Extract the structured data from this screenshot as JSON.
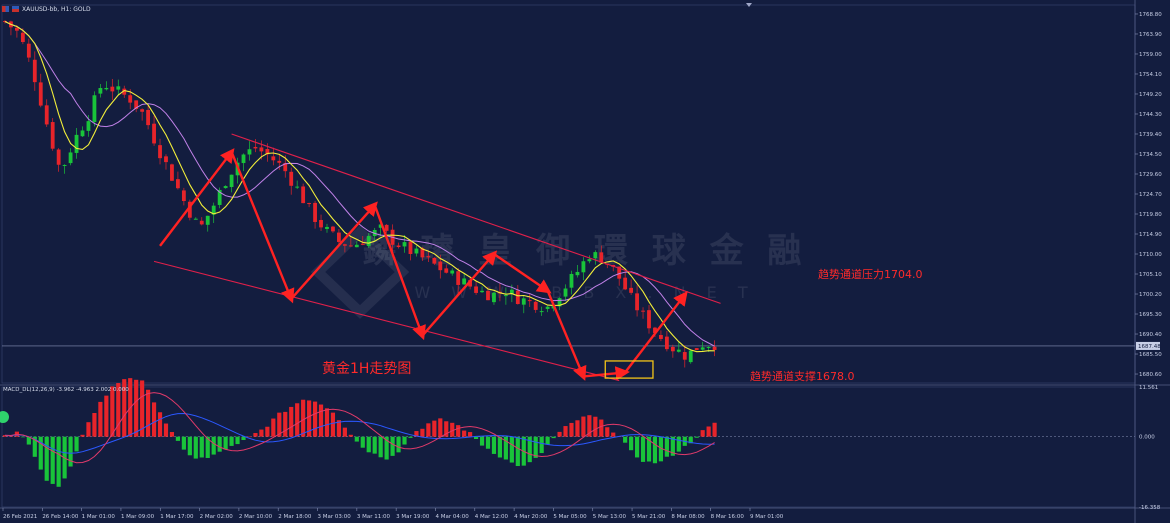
{
  "header": {
    "symbol_label": "XAUUSD-bb, H1:  GOLD"
  },
  "macd_header": {
    "label": "MACD_DL(12,26,9) -3.962 -4.963 2.002 0.000"
  },
  "watermark": {
    "text_cn": "鏻 璿 皇 御 環 球 金 融",
    "text_en": "W W W . B B X . N E T"
  },
  "annotations": {
    "title": "黄金1H走势图",
    "pressure": "趋势通道压力1704.0",
    "support": "趋势通道支撑1678.0"
  },
  "colors": {
    "bg": "#131d3f",
    "bull": "#19c43a",
    "bear": "#e8242a",
    "arrow": "#ff2222",
    "channel": "#e0204a",
    "ma_fast": "#f2ee3a",
    "ma_slow": "#c081e8",
    "box": "#f2c418"
  },
  "chart_data": [
    {
      "type": "candlestick",
      "title": "黄金1H走势图",
      "symbol": "XAUUSD-bb, H1: GOLD",
      "x_labels": [
        "26 Feb 2021",
        "26 Feb 14:00",
        "1 Mar 01:00",
        "1 Mar 09:00",
        "1 Mar 17:00",
        "2 Mar 02:00",
        "2 Mar 10:00",
        "2 Mar 18:00",
        "3 Mar 03:00",
        "3 Mar 11:00",
        "3 Mar 19:00",
        "4 Mar 04:00",
        "4 Mar 12:00",
        "4 Mar 20:00",
        "5 Mar 05:00",
        "5 Mar 13:00",
        "5 Mar 21:00",
        "8 Mar 08:00",
        "8 Mar 16:00",
        "9 Mar 01:00"
      ],
      "y_ticks": [
        "1768.80",
        "1763.90",
        "1759.00",
        "1754.10",
        "1749.20",
        "1744.30",
        "1739.40",
        "1734.50",
        "1729.60",
        "1724.70",
        "1719.80",
        "1714.90",
        "1710.00",
        "1705.10",
        "1700.20",
        "1695.30",
        "1690.40",
        "1685.50",
        "1680.60"
      ],
      "ylim": [
        1678.4,
        1771.0
      ],
      "current_price": "1687.48",
      "close_path": [
        1767,
        1764,
        1755,
        1742,
        1730,
        1738,
        1744,
        1752,
        1750,
        1748,
        1744,
        1736,
        1729,
        1722,
        1716,
        1722,
        1729,
        1734,
        1736,
        1734,
        1731,
        1726,
        1720,
        1716,
        1713,
        1712,
        1714,
        1716,
        1713,
        1711,
        1709,
        1707,
        1705,
        1703,
        1701,
        1700,
        1701,
        1699,
        1698,
        1697,
        1701,
        1705,
        1710,
        1709,
        1705,
        1699,
        1694,
        1690,
        1687,
        1685,
        1688,
        1688
      ],
      "channel_upper": {
        "from": {
          "index": 38,
          "price": 1739.4
        },
        "to": {
          "index": 120,
          "price": 1697.9
        }
      },
      "channel_lower": {
        "from": {
          "index": 25,
          "price": 1708.2
        },
        "to": {
          "index": 103,
          "price": 1679.0
        }
      },
      "annotation_levels": {
        "pressure": 1704.0,
        "support": 1678.0
      }
    },
    {
      "type": "macd_histogram",
      "label": "MACD_DL(12,26,9) -3.962 -4.963 2.002 0.000",
      "y_ticks": [
        "11.561",
        "0.000",
        "-16.358"
      ],
      "ylim": [
        -16.358,
        11.561
      ],
      "hist_path": [
        0,
        1,
        -3,
        -10,
        -12,
        -6,
        3,
        8,
        12,
        14,
        13,
        8,
        2,
        -3,
        -5,
        -5,
        -3,
        -2,
        0,
        2,
        5,
        7,
        9,
        8,
        6,
        2,
        -2,
        -4,
        -5,
        -3,
        1,
        3,
        4,
        3,
        1,
        -2,
        -4,
        -6,
        -7,
        -5,
        -1,
        2,
        4,
        5,
        3,
        0,
        -4,
        -6,
        -6,
        -4,
        -2,
        1,
        3
      ]
    }
  ]
}
